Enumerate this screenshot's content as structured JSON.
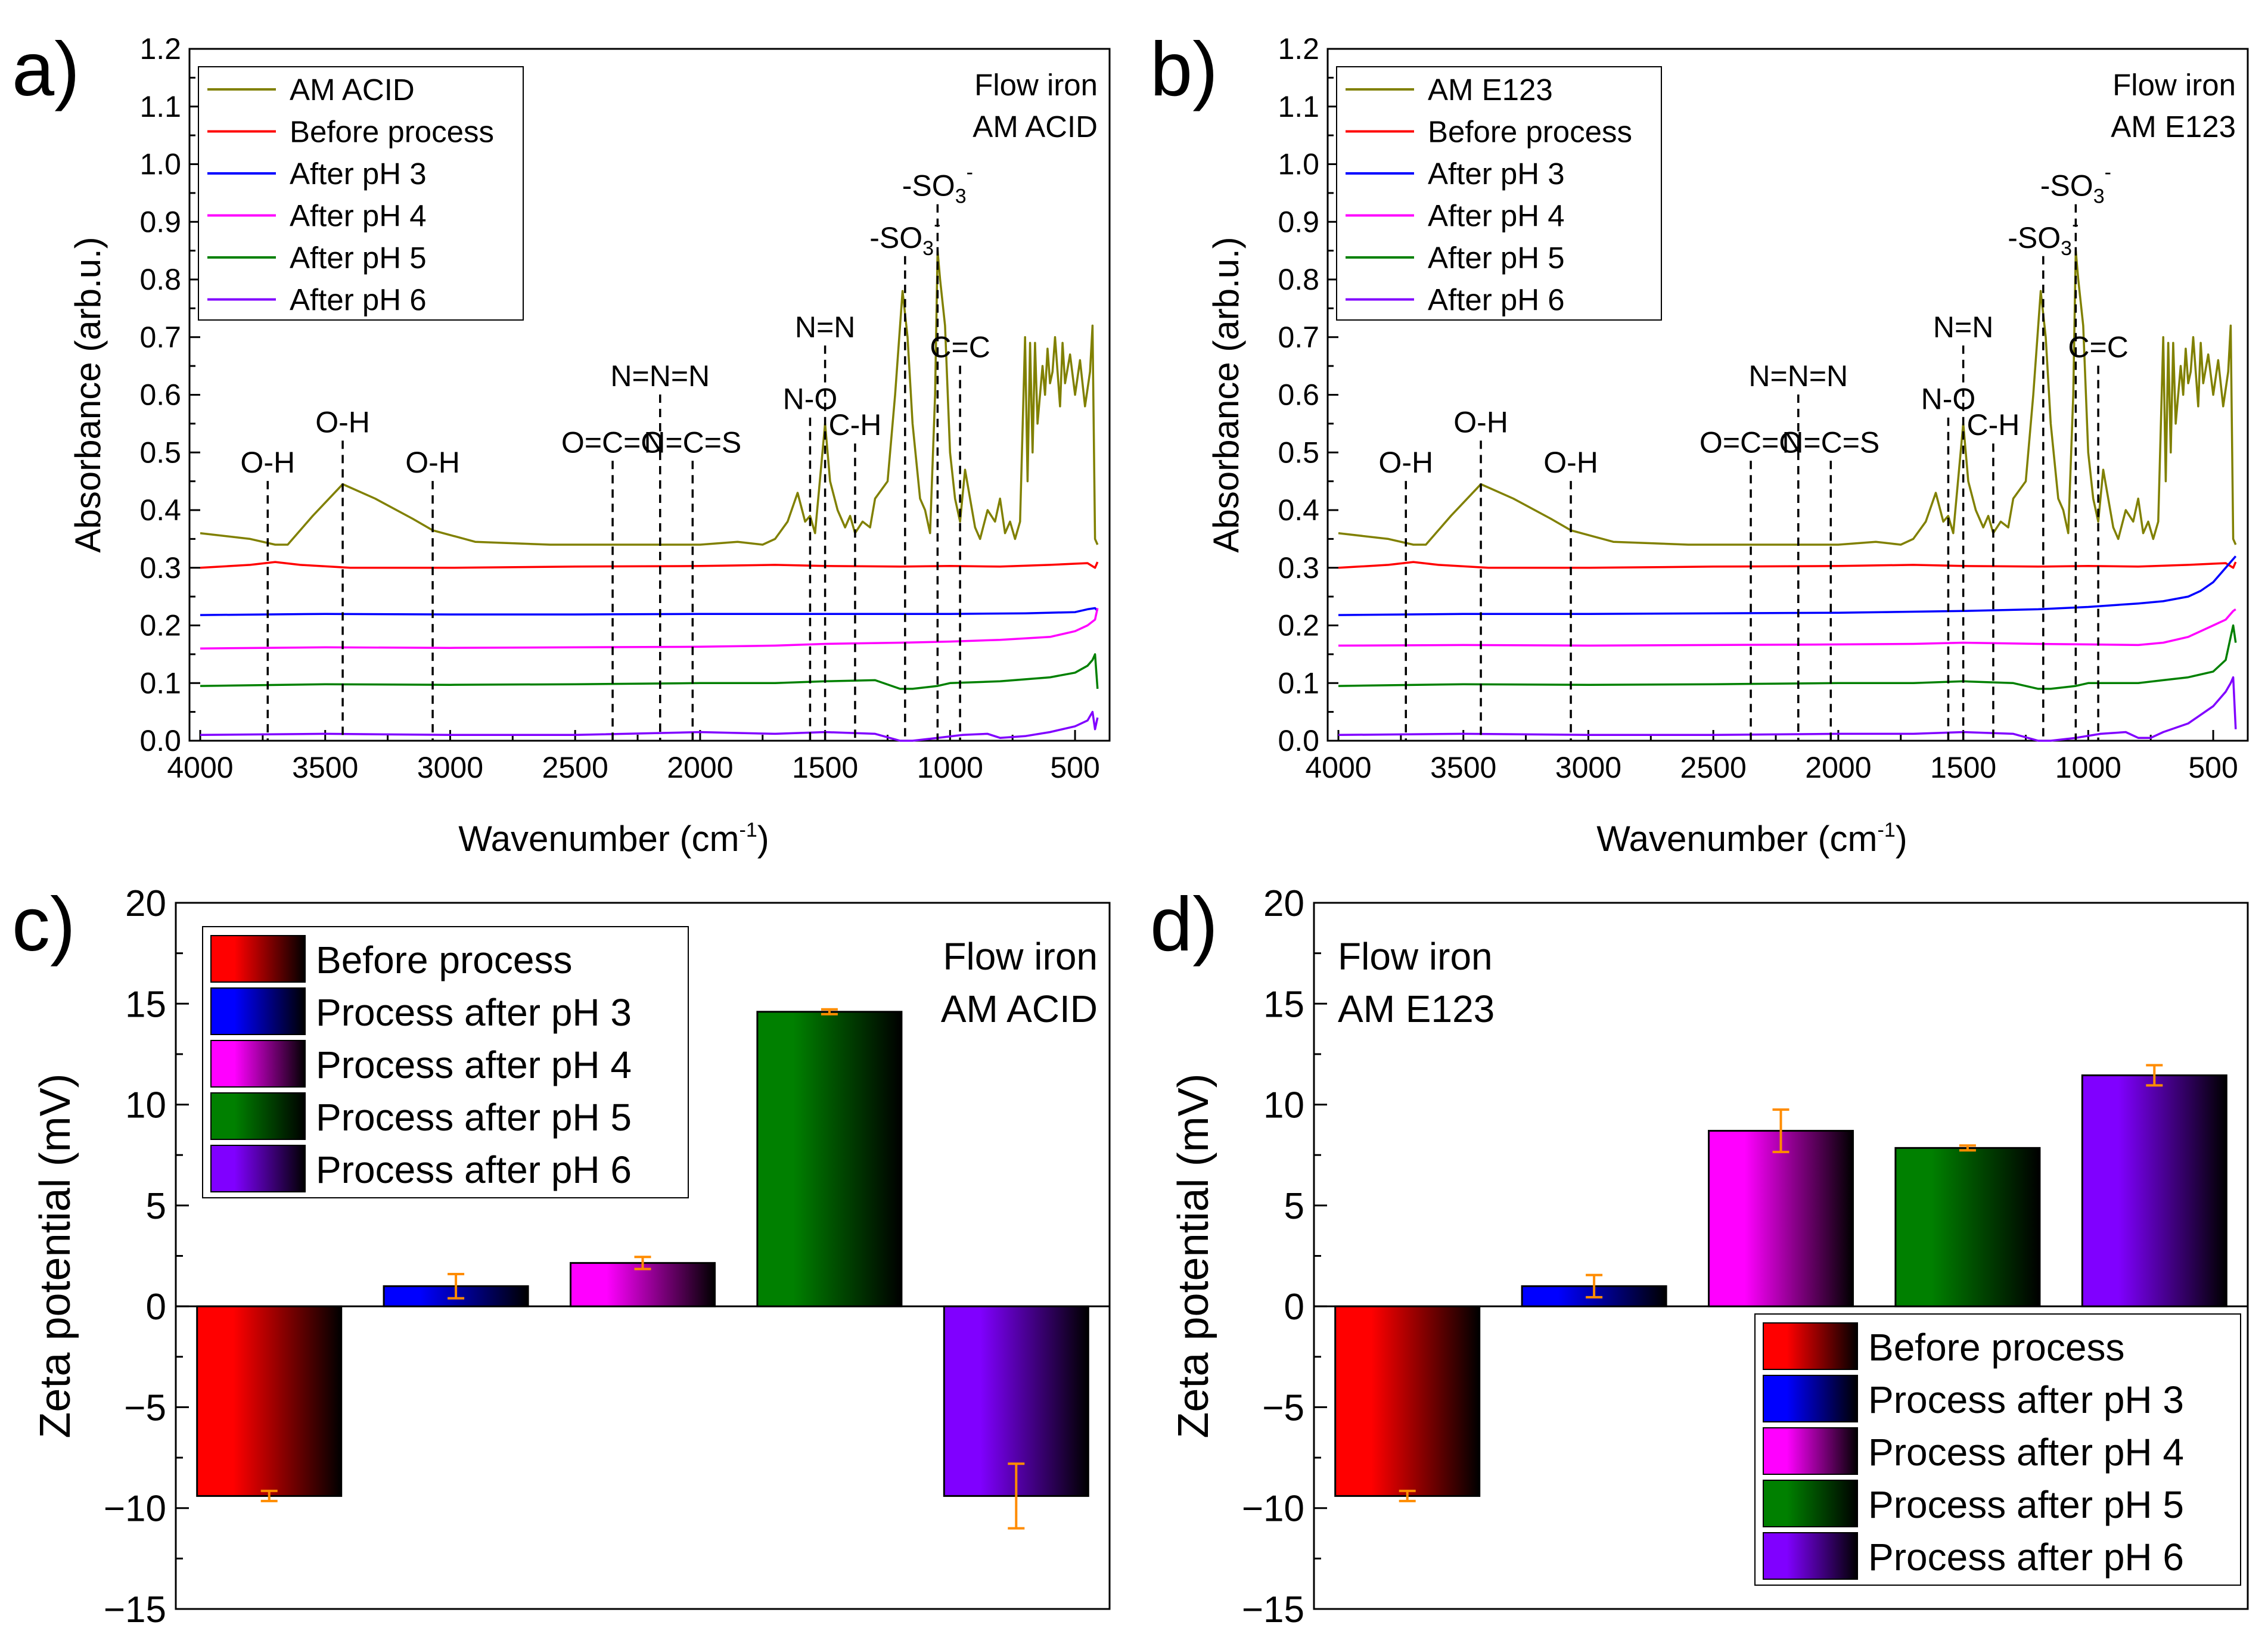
{
  "colors": {
    "am": "#808000",
    "before": "#ff0000",
    "ph3": "#0000ff",
    "ph4": "#ff00ff",
    "ph5": "#008000",
    "ph6": "#8000ff",
    "error": "#ff8c00"
  },
  "chart_data": [
    {
      "panel": "a)",
      "type": "line",
      "xlabel": "Wavenumber (cm",
      "xlabel_sup": "-1",
      "xlabel_end": ")",
      "ylabel": "Absorbance (arb.u.)",
      "xlim": [
        4000,
        400
      ],
      "ylim": [
        0,
        1.2
      ],
      "xticks": [
        "4000",
        "3500",
        "3000",
        "2500",
        "2000",
        "1500",
        "1000",
        "500"
      ],
      "yticks": [
        "0.0",
        "0.1",
        "0.2",
        "0.3",
        "0.4",
        "0.5",
        "0.6",
        "0.7",
        "0.8",
        "0.9",
        "1.0",
        "1.1",
        "1.2"
      ],
      "corner_text": [
        "Flow iron",
        "AM ACID"
      ],
      "legend": [
        "AM ACID",
        "Before process",
        "After pH 3",
        "After pH 4",
        "After pH 5",
        "After pH 6"
      ],
      "peaks": [
        {
          "label": "O-H",
          "x": 3730,
          "y_label": 0.465
        },
        {
          "label": "O-H",
          "x": 3430,
          "y_label": 0.535
        },
        {
          "label": "O-H",
          "x": 3070,
          "y_label": 0.465
        },
        {
          "label": "O=C=O",
          "x": 2350,
          "y_label": 0.5
        },
        {
          "label": "N=N=N",
          "x": 2160,
          "y_label": 0.615
        },
        {
          "label": "N=C=S",
          "x": 2030,
          "y_label": 0.5
        },
        {
          "label": "N=N",
          "x": 1500,
          "y_label": 0.7
        },
        {
          "label": "N-O",
          "x": 1560,
          "y_label": 0.575
        },
        {
          "label": "C-H",
          "x": 1380,
          "y_label": 0.53
        },
        {
          "label": "-SO",
          "x": 1180,
          "y_label": 0.855
        },
        {
          "label": "-SO",
          "x": 1050,
          "y_label": 0.945
        },
        {
          "label": "C=C",
          "x": 960,
          "y_label": 0.665
        }
      ],
      "series": [
        {
          "name": "AM ACID",
          "key": "am",
          "x": [
            4000,
            3800,
            3700,
            3650,
            3550,
            3430,
            3300,
            3150,
            3070,
            2900,
            2600,
            2400,
            2200,
            2000,
            1850,
            1750,
            1700,
            1650,
            1610,
            1580,
            1560,
            1540,
            1500,
            1480,
            1450,
            1420,
            1400,
            1380,
            1350,
            1320,
            1300,
            1250,
            1220,
            1190,
            1170,
            1150,
            1120,
            1100,
            1080,
            1060,
            1050,
            1040,
            1020,
            1000,
            980,
            960,
            940,
            920,
            900,
            880,
            850,
            820,
            800,
            780,
            760,
            740,
            720,
            700,
            690,
            680,
            670,
            660,
            650,
            630,
            620,
            610,
            600,
            590,
            580,
            560,
            550,
            540,
            520,
            500,
            480,
            460,
            440,
            430,
            420,
            410
          ],
          "y": [
            0.36,
            0.35,
            0.34,
            0.34,
            0.39,
            0.445,
            0.42,
            0.385,
            0.365,
            0.345,
            0.34,
            0.34,
            0.34,
            0.34,
            0.345,
            0.34,
            0.35,
            0.38,
            0.43,
            0.38,
            0.39,
            0.36,
            0.55,
            0.45,
            0.4,
            0.37,
            0.39,
            0.36,
            0.38,
            0.37,
            0.42,
            0.45,
            0.6,
            0.78,
            0.7,
            0.55,
            0.42,
            0.4,
            0.36,
            0.6,
            0.85,
            0.8,
            0.72,
            0.5,
            0.42,
            0.38,
            0.47,
            0.42,
            0.37,
            0.35,
            0.4,
            0.38,
            0.42,
            0.36,
            0.38,
            0.35,
            0.38,
            0.7,
            0.45,
            0.69,
            0.5,
            0.69,
            0.55,
            0.65,
            0.6,
            0.68,
            0.62,
            0.64,
            0.7,
            0.58,
            0.69,
            0.62,
            0.67,
            0.6,
            0.66,
            0.58,
            0.64,
            0.72,
            0.35,
            0.34
          ]
        },
        {
          "name": "Before process",
          "key": "before",
          "x": [
            4000,
            3800,
            3700,
            3600,
            3400,
            3000,
            2500,
            2000,
            1700,
            1500,
            1200,
            1000,
            800,
            600,
            450,
            420,
            410
          ],
          "y": [
            0.3,
            0.305,
            0.31,
            0.305,
            0.3,
            0.3,
            0.302,
            0.303,
            0.305,
            0.303,
            0.302,
            0.303,
            0.302,
            0.305,
            0.308,
            0.3,
            0.31
          ]
        },
        {
          "name": "After pH 3",
          "key": "ph3",
          "x": [
            4000,
            3500,
            3000,
            2500,
            2000,
            1500,
            1000,
            700,
            500,
            450,
            420,
            410
          ],
          "y": [
            0.218,
            0.22,
            0.219,
            0.219,
            0.22,
            0.22,
            0.22,
            0.221,
            0.223,
            0.228,
            0.23,
            0.225
          ]
        },
        {
          "name": "After pH 4",
          "key": "ph4",
          "x": [
            4000,
            3500,
            3000,
            2500,
            2000,
            1700,
            1500,
            1200,
            1000,
            800,
            600,
            500,
            450,
            420,
            410
          ],
          "y": [
            0.16,
            0.162,
            0.161,
            0.162,
            0.163,
            0.165,
            0.168,
            0.17,
            0.172,
            0.175,
            0.18,
            0.19,
            0.2,
            0.21,
            0.23
          ]
        },
        {
          "name": "After pH 5",
          "key": "ph5",
          "x": [
            4000,
            3500,
            3000,
            2500,
            2000,
            1700,
            1500,
            1300,
            1200,
            1150,
            1050,
            1000,
            800,
            600,
            500,
            450,
            430,
            420,
            410
          ],
          "y": [
            0.095,
            0.098,
            0.097,
            0.098,
            0.1,
            0.1,
            0.103,
            0.105,
            0.09,
            0.09,
            0.095,
            0.1,
            0.103,
            0.11,
            0.118,
            0.13,
            0.14,
            0.15,
            0.09
          ]
        },
        {
          "name": "After pH 6",
          "key": "ph6",
          "x": [
            4000,
            3500,
            3000,
            2500,
            2000,
            1700,
            1500,
            1300,
            1200,
            1150,
            1050,
            950,
            850,
            800,
            700,
            600,
            500,
            450,
            430,
            420,
            410
          ],
          "y": [
            0.01,
            0.012,
            0.01,
            0.01,
            0.015,
            0.012,
            0.015,
            0.012,
            0.0,
            0.0,
            0.005,
            0.01,
            0.012,
            0.005,
            0.008,
            0.015,
            0.025,
            0.035,
            0.05,
            0.02,
            0.04
          ]
        }
      ]
    },
    {
      "panel": "b)",
      "type": "line",
      "xlabel": "Wavenumber (cm",
      "xlabel_sup": "-1",
      "xlabel_end": ")",
      "ylabel": "Absorbance (arb.u.)",
      "xlim": [
        4000,
        400
      ],
      "ylim": [
        0,
        1.2
      ],
      "xticks": [
        "4000",
        "3500",
        "3000",
        "2500",
        "2000",
        "1500",
        "1000",
        "500"
      ],
      "yticks": [
        "0.0",
        "0.1",
        "0.2",
        "0.3",
        "0.4",
        "0.5",
        "0.6",
        "0.7",
        "0.8",
        "0.9",
        "1.0",
        "1.1",
        "1.2"
      ],
      "corner_text": [
        "Flow iron",
        "AM E123"
      ],
      "legend": [
        "AM E123",
        "Before process",
        "After pH 3",
        "After pH 4",
        "After pH 5",
        "After pH 6"
      ],
      "peaks": [
        {
          "label": "O-H",
          "x": 3730,
          "y_label": 0.465
        },
        {
          "label": "O-H",
          "x": 3430,
          "y_label": 0.535
        },
        {
          "label": "O-H",
          "x": 3070,
          "y_label": 0.465
        },
        {
          "label": "O=C=O",
          "x": 2350,
          "y_label": 0.5
        },
        {
          "label": "N=N=N",
          "x": 2160,
          "y_label": 0.615
        },
        {
          "label": "N=C=S",
          "x": 2030,
          "y_label": 0.5
        },
        {
          "label": "N=N",
          "x": 1500,
          "y_label": 0.7
        },
        {
          "label": "N-O",
          "x": 1560,
          "y_label": 0.575
        },
        {
          "label": "C-H",
          "x": 1380,
          "y_label": 0.53
        },
        {
          "label": "-SO",
          "x": 1180,
          "y_label": 0.855
        },
        {
          "label": "-SO",
          "x": 1050,
          "y_label": 0.945
        },
        {
          "label": "C=C",
          "x": 960,
          "y_label": 0.665
        }
      ],
      "series": [
        {
          "name": "AM E123",
          "key": "am",
          "x": [
            4000,
            3800,
            3700,
            3650,
            3550,
            3430,
            3300,
            3150,
            3070,
            2900,
            2600,
            2400,
            2200,
            2000,
            1850,
            1750,
            1700,
            1650,
            1610,
            1580,
            1560,
            1540,
            1500,
            1480,
            1450,
            1420,
            1400,
            1380,
            1350,
            1320,
            1300,
            1250,
            1220,
            1190,
            1170,
            1150,
            1120,
            1100,
            1080,
            1060,
            1050,
            1040,
            1020,
            1000,
            980,
            960,
            940,
            920,
            900,
            880,
            850,
            820,
            800,
            780,
            760,
            740,
            720,
            700,
            690,
            680,
            670,
            660,
            650,
            630,
            620,
            610,
            600,
            590,
            580,
            560,
            550,
            540,
            520,
            500,
            480,
            460,
            440,
            430,
            420,
            410
          ],
          "y": [
            0.36,
            0.35,
            0.34,
            0.34,
            0.39,
            0.445,
            0.42,
            0.385,
            0.365,
            0.345,
            0.34,
            0.34,
            0.34,
            0.34,
            0.345,
            0.34,
            0.35,
            0.38,
            0.43,
            0.38,
            0.39,
            0.36,
            0.55,
            0.45,
            0.4,
            0.37,
            0.39,
            0.36,
            0.38,
            0.37,
            0.42,
            0.45,
            0.6,
            0.78,
            0.7,
            0.55,
            0.42,
            0.4,
            0.36,
            0.6,
            0.85,
            0.8,
            0.72,
            0.5,
            0.42,
            0.38,
            0.47,
            0.42,
            0.37,
            0.35,
            0.4,
            0.38,
            0.42,
            0.36,
            0.38,
            0.35,
            0.38,
            0.7,
            0.45,
            0.69,
            0.5,
            0.69,
            0.55,
            0.65,
            0.6,
            0.68,
            0.62,
            0.64,
            0.7,
            0.58,
            0.69,
            0.62,
            0.67,
            0.6,
            0.66,
            0.58,
            0.64,
            0.72,
            0.35,
            0.34
          ]
        },
        {
          "name": "Before process",
          "key": "before",
          "x": [
            4000,
            3800,
            3700,
            3600,
            3400,
            3000,
            2500,
            2000,
            1700,
            1500,
            1200,
            1000,
            800,
            600,
            450,
            420,
            410
          ],
          "y": [
            0.3,
            0.305,
            0.31,
            0.305,
            0.3,
            0.3,
            0.302,
            0.303,
            0.305,
            0.303,
            0.302,
            0.303,
            0.302,
            0.305,
            0.308,
            0.3,
            0.31
          ]
        },
        {
          "name": "After pH 3",
          "key": "ph3",
          "x": [
            4000,
            3500,
            3000,
            2500,
            2000,
            1500,
            1200,
            1000,
            800,
            700,
            600,
            550,
            500,
            450,
            420,
            410
          ],
          "y": [
            0.218,
            0.22,
            0.22,
            0.221,
            0.222,
            0.225,
            0.228,
            0.232,
            0.238,
            0.242,
            0.25,
            0.26,
            0.275,
            0.3,
            0.315,
            0.32
          ]
        },
        {
          "name": "After pH 4",
          "key": "ph4",
          "x": [
            4000,
            3500,
            3000,
            2500,
            2000,
            1700,
            1500,
            1200,
            1000,
            800,
            700,
            600,
            500,
            450,
            420,
            410
          ],
          "y": [
            0.165,
            0.166,
            0.165,
            0.166,
            0.167,
            0.168,
            0.17,
            0.168,
            0.167,
            0.166,
            0.17,
            0.18,
            0.2,
            0.21,
            0.225,
            0.228
          ]
        },
        {
          "name": "After pH 5",
          "key": "ph5",
          "x": [
            4000,
            3500,
            3000,
            2500,
            2000,
            1700,
            1500,
            1300,
            1200,
            1150,
            1050,
            1000,
            800,
            700,
            600,
            500,
            450,
            430,
            420,
            410
          ],
          "y": [
            0.095,
            0.098,
            0.097,
            0.098,
            0.1,
            0.1,
            0.103,
            0.1,
            0.09,
            0.09,
            0.095,
            0.1,
            0.1,
            0.105,
            0.11,
            0.12,
            0.14,
            0.18,
            0.2,
            0.17
          ]
        },
        {
          "name": "After pH 6",
          "key": "ph6",
          "x": [
            4000,
            3500,
            3000,
            2500,
            2000,
            1700,
            1500,
            1300,
            1200,
            1150,
            1050,
            950,
            850,
            800,
            750,
            700,
            600,
            500,
            450,
            430,
            420,
            410
          ],
          "y": [
            0.01,
            0.012,
            0.01,
            0.01,
            0.012,
            0.012,
            0.015,
            0.012,
            0.0,
            0.0,
            0.005,
            0.012,
            0.015,
            0.005,
            0.005,
            0.015,
            0.03,
            0.06,
            0.085,
            0.1,
            0.11,
            0.02
          ]
        }
      ]
    },
    {
      "panel": "c)",
      "type": "bar",
      "ylabel": "Zeta potential (mV)",
      "ylim": [
        -15,
        20
      ],
      "yticks": [
        "−15",
        "−10",
        "−5",
        "0",
        "5",
        "10",
        "15",
        "20"
      ],
      "corner_text": [
        "Flow iron",
        "AM ACID"
      ],
      "legend_position": "top-left",
      "categories": [
        "Before process",
        "Process after pH 3",
        "Process after pH 4",
        "Process after pH 5",
        "Process after pH 6"
      ],
      "keys": [
        "before",
        "ph3",
        "ph4",
        "ph5",
        "ph6"
      ],
      "values": [
        -9.4,
        1.0,
        2.15,
        14.6,
        -9.4
      ],
      "errors": [
        0.25,
        0.6,
        0.3,
        0.12,
        1.6
      ]
    },
    {
      "panel": "d)",
      "type": "bar",
      "ylabel": "Zeta potential (mV)",
      "ylim": [
        -15,
        20
      ],
      "yticks": [
        "−15",
        "−10",
        "−5",
        "0",
        "5",
        "10",
        "15",
        "20"
      ],
      "corner_text": [
        "Flow iron",
        "AM E123"
      ],
      "legend_position": "bottom-right",
      "categories": [
        "Before process",
        "Process after pH 3",
        "Process after pH 4",
        "Process after pH 5",
        "Process after pH 6"
      ],
      "keys": [
        "before",
        "ph3",
        "ph4",
        "ph5",
        "ph6"
      ],
      "values": [
        -9.4,
        1.0,
        8.7,
        7.85,
        11.45
      ],
      "errors": [
        0.25,
        0.55,
        1.05,
        0.12,
        0.5
      ]
    }
  ]
}
